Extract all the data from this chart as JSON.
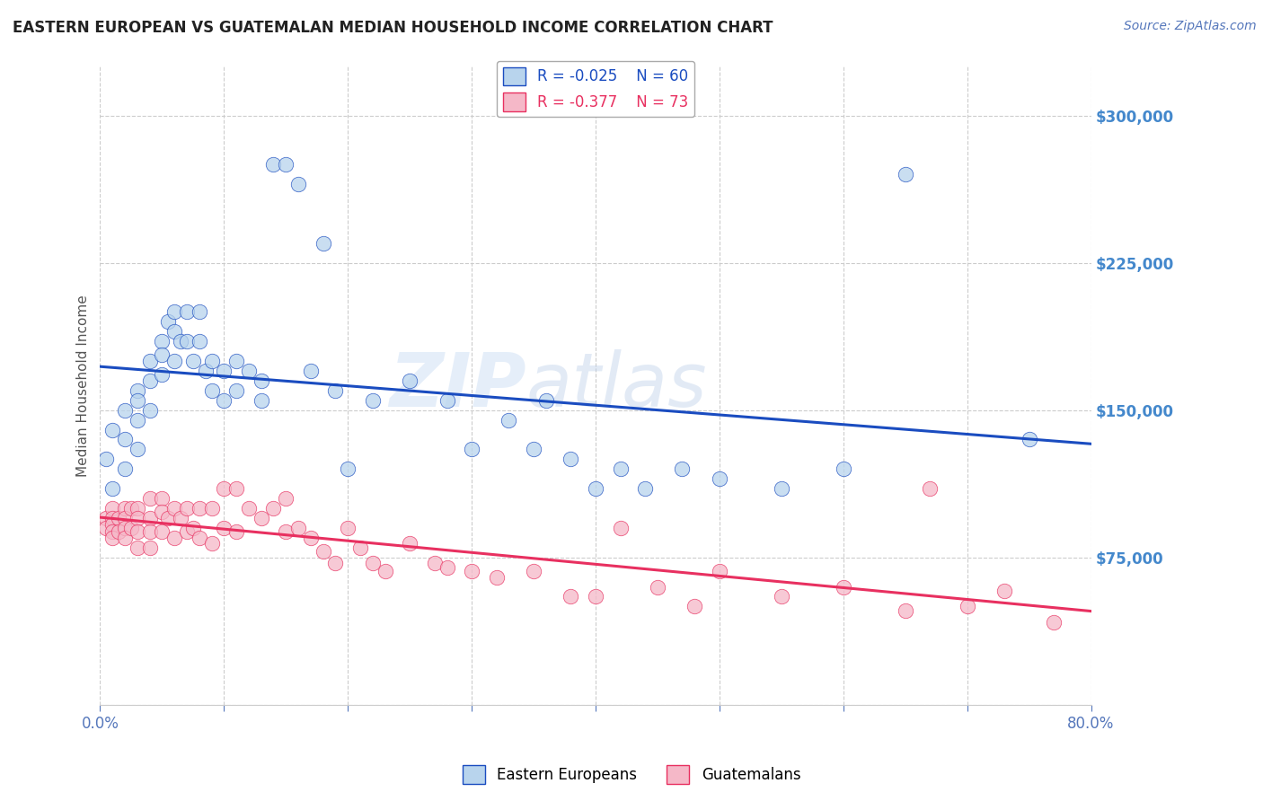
{
  "title": "EASTERN EUROPEAN VS GUATEMALAN MEDIAN HOUSEHOLD INCOME CORRELATION CHART",
  "source": "Source: ZipAtlas.com",
  "ylabel": "Median Household Income",
  "legend_labels": [
    "Eastern Europeans",
    "Guatemalans"
  ],
  "r_eastern": -0.025,
  "n_eastern": 60,
  "r_guatemalan": -0.377,
  "n_guatemalan": 73,
  "eastern_color": "#b8d4ed",
  "guatemalan_color": "#f5b8c8",
  "eastern_line_color": "#1a4cc0",
  "guatemalan_line_color": "#e83060",
  "background_color": "#ffffff",
  "grid_color": "#cccccc",
  "title_color": "#222222",
  "axis_label_color": "#555555",
  "tick_color": "#5577bb",
  "yaxis_tick_color": "#4488cc",
  "xlim": [
    0.0,
    0.8
  ],
  "ylim": [
    0,
    325000
  ],
  "yticks": [
    0,
    75000,
    150000,
    225000,
    300000
  ],
  "ytick_labels": [
    "",
    "$75,000",
    "$150,000",
    "$225,000",
    "$300,000"
  ],
  "xticks": [
    0.0,
    0.1,
    0.2,
    0.3,
    0.4,
    0.5,
    0.6,
    0.7,
    0.8
  ],
  "xtick_labels": [
    "0.0%",
    "",
    "",
    "",
    "",
    "",
    "",
    "",
    "80.0%"
  ],
  "eastern_x": [
    0.005,
    0.01,
    0.01,
    0.02,
    0.02,
    0.02,
    0.03,
    0.03,
    0.03,
    0.03,
    0.04,
    0.04,
    0.04,
    0.05,
    0.05,
    0.05,
    0.055,
    0.06,
    0.06,
    0.06,
    0.065,
    0.07,
    0.07,
    0.075,
    0.08,
    0.08,
    0.085,
    0.09,
    0.09,
    0.1,
    0.1,
    0.11,
    0.11,
    0.12,
    0.13,
    0.13,
    0.14,
    0.15,
    0.16,
    0.17,
    0.18,
    0.19,
    0.2,
    0.22,
    0.25,
    0.28,
    0.3,
    0.33,
    0.35,
    0.36,
    0.38,
    0.4,
    0.42,
    0.44,
    0.47,
    0.5,
    0.55,
    0.6,
    0.65,
    0.75
  ],
  "eastern_y": [
    125000,
    140000,
    110000,
    150000,
    135000,
    120000,
    160000,
    155000,
    145000,
    130000,
    175000,
    165000,
    150000,
    185000,
    178000,
    168000,
    195000,
    200000,
    190000,
    175000,
    185000,
    200000,
    185000,
    175000,
    200000,
    185000,
    170000,
    175000,
    160000,
    170000,
    155000,
    175000,
    160000,
    170000,
    165000,
    155000,
    275000,
    275000,
    265000,
    170000,
    235000,
    160000,
    120000,
    155000,
    165000,
    155000,
    130000,
    145000,
    130000,
    155000,
    125000,
    110000,
    120000,
    110000,
    120000,
    115000,
    110000,
    120000,
    270000,
    135000
  ],
  "guatemalan_x": [
    0.005,
    0.005,
    0.01,
    0.01,
    0.01,
    0.01,
    0.01,
    0.015,
    0.015,
    0.02,
    0.02,
    0.02,
    0.02,
    0.025,
    0.025,
    0.03,
    0.03,
    0.03,
    0.03,
    0.04,
    0.04,
    0.04,
    0.04,
    0.05,
    0.05,
    0.05,
    0.055,
    0.06,
    0.06,
    0.065,
    0.07,
    0.07,
    0.075,
    0.08,
    0.08,
    0.09,
    0.09,
    0.1,
    0.1,
    0.11,
    0.11,
    0.12,
    0.13,
    0.14,
    0.15,
    0.15,
    0.16,
    0.17,
    0.18,
    0.19,
    0.2,
    0.21,
    0.22,
    0.23,
    0.25,
    0.27,
    0.28,
    0.3,
    0.32,
    0.35,
    0.38,
    0.4,
    0.42,
    0.45,
    0.48,
    0.5,
    0.55,
    0.6,
    0.65,
    0.67,
    0.7,
    0.73,
    0.77
  ],
  "guatemalan_y": [
    95000,
    90000,
    100000,
    95000,
    92000,
    88000,
    85000,
    95000,
    88000,
    100000,
    95000,
    90000,
    85000,
    100000,
    90000,
    100000,
    95000,
    88000,
    80000,
    105000,
    95000,
    88000,
    80000,
    105000,
    98000,
    88000,
    95000,
    100000,
    85000,
    95000,
    100000,
    88000,
    90000,
    100000,
    85000,
    100000,
    82000,
    110000,
    90000,
    110000,
    88000,
    100000,
    95000,
    100000,
    105000,
    88000,
    90000,
    85000,
    78000,
    72000,
    90000,
    80000,
    72000,
    68000,
    82000,
    72000,
    70000,
    68000,
    65000,
    68000,
    55000,
    55000,
    90000,
    60000,
    50000,
    68000,
    55000,
    60000,
    48000,
    110000,
    50000,
    58000,
    42000
  ]
}
